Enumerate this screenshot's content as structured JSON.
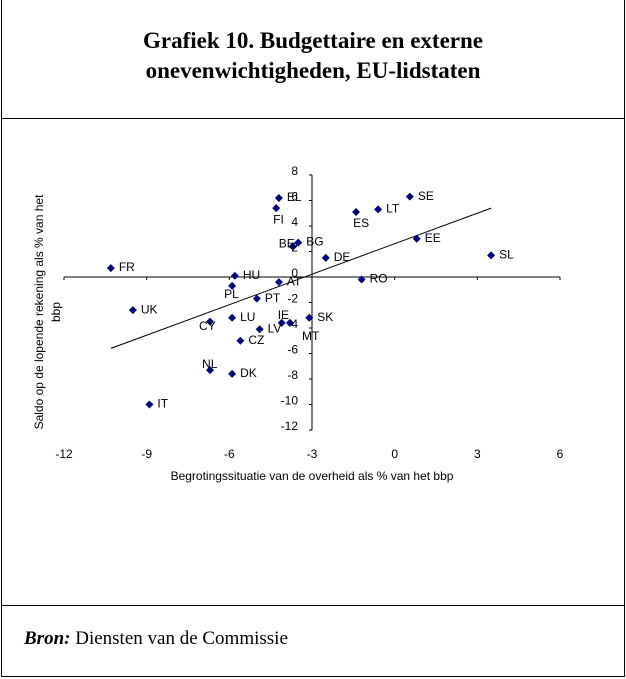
{
  "title": "Grafiek 10. Budgettaire en externe onevenwichtigheden, EU-lidstaten",
  "chart_data": {
    "type": "scatter",
    "xlabel": "Begrotingssituatie van de overheid als % van het bbp",
    "ylabel": "Saldo op de lopende rekening als % van het bbp",
    "color": "#000080",
    "xlim": [
      -12,
      6
    ],
    "xticks": [
      -12,
      -9,
      -6,
      -3,
      0,
      3,
      6
    ],
    "ylim": [
      -12,
      8
    ],
    "yticks": [
      8,
      6,
      4,
      2,
      0,
      -2,
      -4,
      -6,
      -8,
      -10,
      -12
    ],
    "y_axis_crosses": -3,
    "labels": [
      "EL",
      "FI",
      "LT",
      "SE",
      "ES",
      "EE",
      "SL",
      "BG",
      "BE",
      "DE",
      "FR",
      "HU",
      "AT",
      "PL",
      "RO",
      "PT",
      "UK",
      "LU",
      "CY",
      "IE",
      "MT",
      "SK",
      "LV",
      "CZ",
      "NL",
      "DK",
      "IT"
    ],
    "x": [
      -4.2,
      -4.3,
      -0.6,
      0.55,
      -1.4,
      0.8,
      3.5,
      -3.5,
      -3.7,
      -2.5,
      -10.3,
      -5.8,
      -4.2,
      -5.9,
      -1.2,
      -5.0,
      -9.5,
      -5.9,
      -6.7,
      -4.1,
      -3.8,
      -3.1,
      -4.9,
      -5.6,
      -6.7,
      -5.9,
      -8.9
    ],
    "y": [
      6.2,
      5.4,
      5.3,
      6.3,
      5.1,
      3.0,
      1.7,
      2.7,
      2.4,
      1.5,
      0.7,
      0.1,
      -0.4,
      -0.7,
      -0.2,
      -1.7,
      -2.6,
      -3.2,
      -3.5,
      -3.6,
      -3.6,
      -3.2,
      -4.1,
      -5.0,
      -7.3,
      -7.6,
      -10.0
    ],
    "trendline": {
      "x": [
        -10.3,
        3.5
      ],
      "y": [
        -5.6,
        5.4
      ]
    }
  },
  "source": {
    "label": "Bron:",
    "text": " Diensten van de Commissie"
  }
}
